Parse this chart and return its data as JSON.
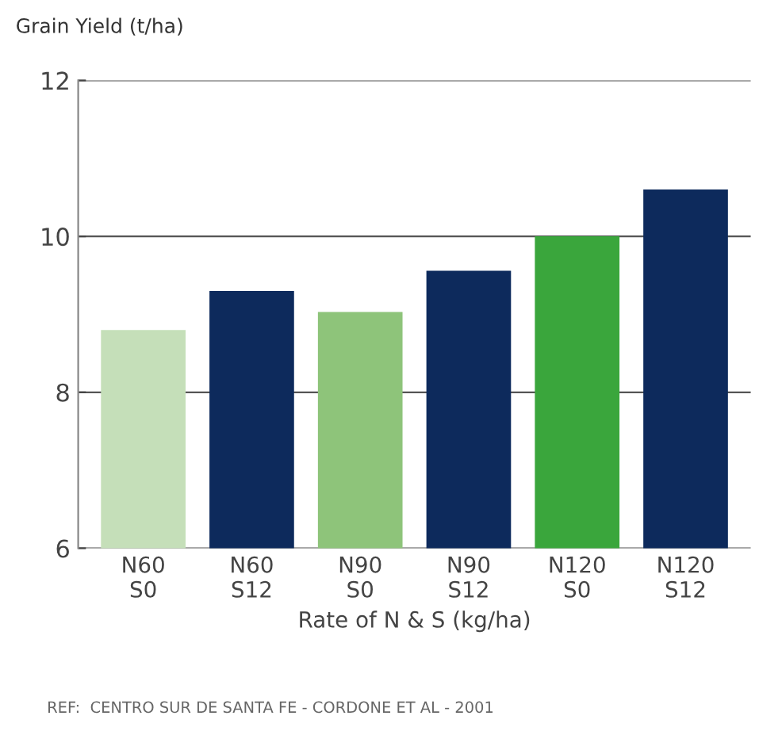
{
  "chart_data": {
    "type": "bar",
    "ylabel": "Grain Yield (t/ha)",
    "xlabel": "Rate of N & S (kg/ha)",
    "categories": [
      "N60\nS0",
      "N60\nS12",
      "N90\nS0",
      "N90\nS12",
      "N120\nS0",
      "N120\nS12"
    ],
    "values": [
      8.8,
      9.3,
      9.03,
      9.56,
      10.0,
      10.6
    ],
    "colors": [
      "#c5dfb9",
      "#0d2a5c",
      "#8ec47a",
      "#0d2a5c",
      "#3aa63c",
      "#0d2a5c"
    ],
    "ylim": [
      6,
      12
    ],
    "yticks": [
      6,
      8,
      10,
      12
    ],
    "grid": "y",
    "annotations": [
      "REF:  CENTRO SUR DE SANTA FE - CORDONE ET AL - 2001"
    ]
  }
}
